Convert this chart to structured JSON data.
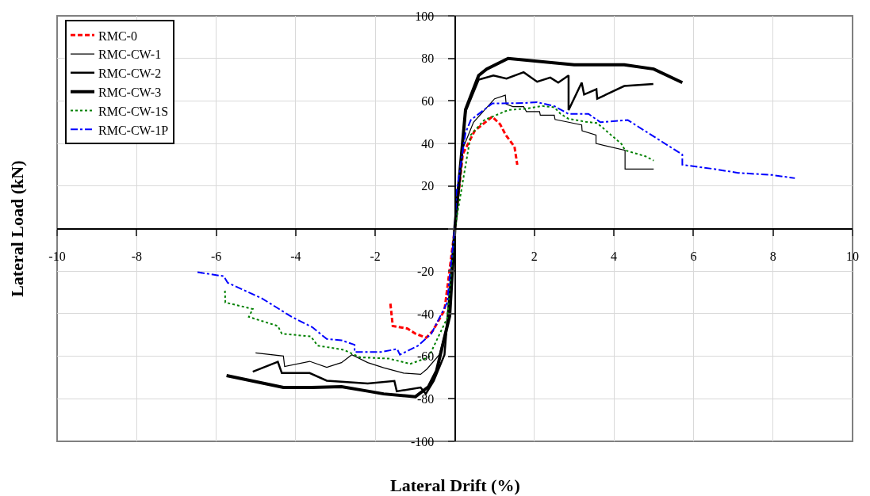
{
  "chart_data": {
    "type": "line",
    "xlabel": "Lateral Drift (%)",
    "ylabel": "Lateral Load (kN)",
    "xlim": [
      -10,
      10
    ],
    "ylim": [
      -100,
      100
    ],
    "xticks": [
      -10,
      -8,
      -6,
      -4,
      -2,
      {
        "value": 0,
        "label": null
      },
      2,
      4,
      6,
      8,
      10
    ],
    "yticks": [
      -100,
      -80,
      -60,
      -40,
      -20,
      {
        "value": 0,
        "label": null
      },
      20,
      40,
      60,
      80,
      100
    ],
    "grid": true,
    "legend": "top left",
    "marker": "none",
    "series": [
      {
        "name": "RMC-0",
        "color": "#ff0000",
        "line_style": "dashed",
        "x": [
          -1.62,
          -1.56,
          -1.19,
          -0.99,
          -0.72,
          -0.56,
          -0.26,
          0,
          0.2,
          0.5,
          0.94,
          1.14,
          1.28,
          1.5,
          1.57
        ],
        "values": [
          -35.3,
          -45.8,
          -47,
          -49.4,
          -51.3,
          -48.2,
          -38.4,
          0,
          35,
          46,
          52.6,
          49,
          44,
          38.5,
          30
        ]
      },
      {
        "name": "RMC-CW-1",
        "color": "#000000",
        "line_style": "solid",
        "x": [
          -5.01,
          -4.31,
          -4.28,
          -3.65,
          -3.22,
          -2.85,
          -2.59,
          -2.19,
          -1.79,
          -1.29,
          -0.86,
          -0.7,
          -0.39,
          -0.19,
          0,
          0.21,
          0.47,
          1.0,
          1.27,
          1.29,
          1.46,
          1.73,
          1.8,
          2.13,
          2.15,
          2.5,
          2.52,
          2.86,
          3.19,
          3.2,
          3.55,
          3.55,
          4.28,
          4.28,
          5.0
        ],
        "values": [
          -58.4,
          -59.9,
          -64.8,
          -62.4,
          -65.2,
          -63,
          -59.3,
          -63,
          -65.4,
          -67.9,
          -68.5,
          -66,
          -59.3,
          -44.6,
          0,
          38,
          50,
          61,
          62.7,
          58.5,
          57.3,
          57.3,
          55,
          55,
          53.3,
          53.3,
          51.3,
          50,
          48.7,
          46,
          44,
          40,
          36.8,
          28,
          28
        ]
      },
      {
        "name": "RMC-CW-2",
        "color": "#000000",
        "line_style": "solid",
        "x": [
          -5.08,
          -4.45,
          -4.35,
          -3.65,
          -3.22,
          -2.19,
          -1.52,
          -1.46,
          -0.86,
          -0.73,
          -0.53,
          -0.26,
          0,
          0.27,
          0.6,
          0.97,
          1.3,
          1.73,
          2.07,
          2.4,
          2.6,
          2.86,
          2.86,
          3.19,
          3.25,
          3.56,
          3.58,
          4.26,
          4.99
        ],
        "values": [
          -67.3,
          -62.6,
          -67.9,
          -67.9,
          -71.5,
          -72.8,
          -71.6,
          -76.5,
          -74.7,
          -77.7,
          -71.6,
          -59.3,
          0,
          55,
          70,
          72,
          70.5,
          73.5,
          69,
          71,
          68.6,
          72,
          55.7,
          68.6,
          63,
          65.5,
          61,
          67,
          68
        ]
      },
      {
        "name": "RMC-CW-3",
        "color": "#000000",
        "line_style": "solid",
        "x": [
          -5.74,
          -4.31,
          -3.6,
          -2.85,
          -2.19,
          -1.79,
          -0.99,
          -0.66,
          -0.46,
          -0.13,
          0,
          0.27,
          0.6,
          0.8,
          1.34,
          3.0,
          4.26,
          5.0,
          5.72
        ],
        "values": [
          -69.1,
          -74.7,
          -74.7,
          -74.3,
          -76.4,
          -77.7,
          -79,
          -74.3,
          -66.9,
          -41,
          0,
          56,
          72,
          75,
          80,
          77,
          77,
          75,
          68.6
        ]
      },
      {
        "name": "RMC-CW-1S",
        "color": "#008000",
        "line_style": "dotted",
        "x": [
          -5.78,
          -5.77,
          -5.08,
          -5.18,
          -4.45,
          -4.35,
          -3.62,
          -3.45,
          -2.79,
          -2.39,
          -1.66,
          -1.12,
          -0.66,
          -0.19,
          0,
          0.4,
          0.74,
          1.34,
          1.8,
          2.2,
          2.5,
          2.66,
          2.86,
          3.29,
          3.58,
          4.19,
          4.28,
          4.79,
          5.0
        ],
        "values": [
          -29.2,
          -34.7,
          -37.8,
          -41.5,
          -45.8,
          -49.4,
          -50.7,
          -55,
          -57,
          -60.5,
          -61.1,
          -63.6,
          -60.5,
          -42,
          0,
          44,
          51,
          55.7,
          56.4,
          57.6,
          57,
          53.9,
          51.6,
          50.2,
          49.6,
          39.8,
          36.8,
          34,
          32
        ]
      },
      {
        "name": "RMC-CW-1P",
        "color": "#0000ff",
        "line_style": "dashdot",
        "x": [
          -6.47,
          -5.81,
          -5.71,
          -4.85,
          -4.11,
          -3.58,
          -3.22,
          -2.85,
          -2.52,
          -2.52,
          -1.85,
          -1.45,
          -1.38,
          -0.92,
          -0.59,
          -0.19,
          -0.13,
          0,
          0.04,
          0.27,
          0.4,
          0.94,
          1.73,
          2.07,
          2.5,
          2.86,
          3.36,
          3.66,
          4.35,
          5.72,
          5.72,
          6.52,
          7.12,
          7.98,
          8.55
        ],
        "values": [
          -20.5,
          -22.4,
          -25.5,
          -32.8,
          -41.4,
          -46.4,
          -51.9,
          -52.5,
          -54.6,
          -58,
          -58,
          -56.6,
          -59.3,
          -55,
          -49.4,
          -34.7,
          -22.4,
          0,
          17,
          45,
          51,
          58.8,
          59,
          59.4,
          57.6,
          53.9,
          53.9,
          50,
          51,
          34.8,
          30,
          28,
          26.2,
          25.2,
          23.7
        ]
      }
    ]
  }
}
